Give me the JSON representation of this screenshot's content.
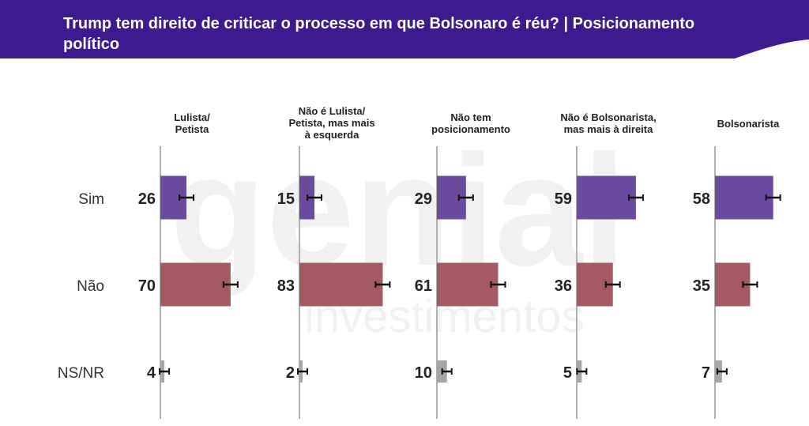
{
  "header": {
    "title": "Trump tem direito de criticar o processo em que Bolsonaro é réu? | Posicionamento político"
  },
  "watermark": {
    "brand": "genial",
    "sub": "investimentos"
  },
  "colors": {
    "header_bg": "#3d1b8f",
    "Sim": "#6b4aa0",
    "Não": "#a35a60",
    "NS/NR": "#a6a6a6",
    "axis": "#b0b0b0",
    "error_bar": "#111111"
  },
  "chart_data": {
    "type": "bar",
    "orientation": "horizontal",
    "categories": [
      "Sim",
      "Não",
      "NS/NR"
    ],
    "panels": [
      {
        "name": "Lulista/ Petista",
        "values": [
          26,
          70,
          4
        ]
      },
      {
        "name": "Não é Lulista/ Petista, mas mais à esquerda",
        "values": [
          15,
          83,
          2
        ]
      },
      {
        "name": "Não tem posicionamento",
        "values": [
          29,
          61,
          10
        ]
      },
      {
        "name": "Não é Bolsonarista, mas mais à direita",
        "values": [
          59,
          36,
          5
        ]
      },
      {
        "name": "Bolsonarista",
        "values": [
          58,
          35,
          7
        ]
      }
    ],
    "error_bars": true,
    "grid": false,
    "legend": "none"
  }
}
